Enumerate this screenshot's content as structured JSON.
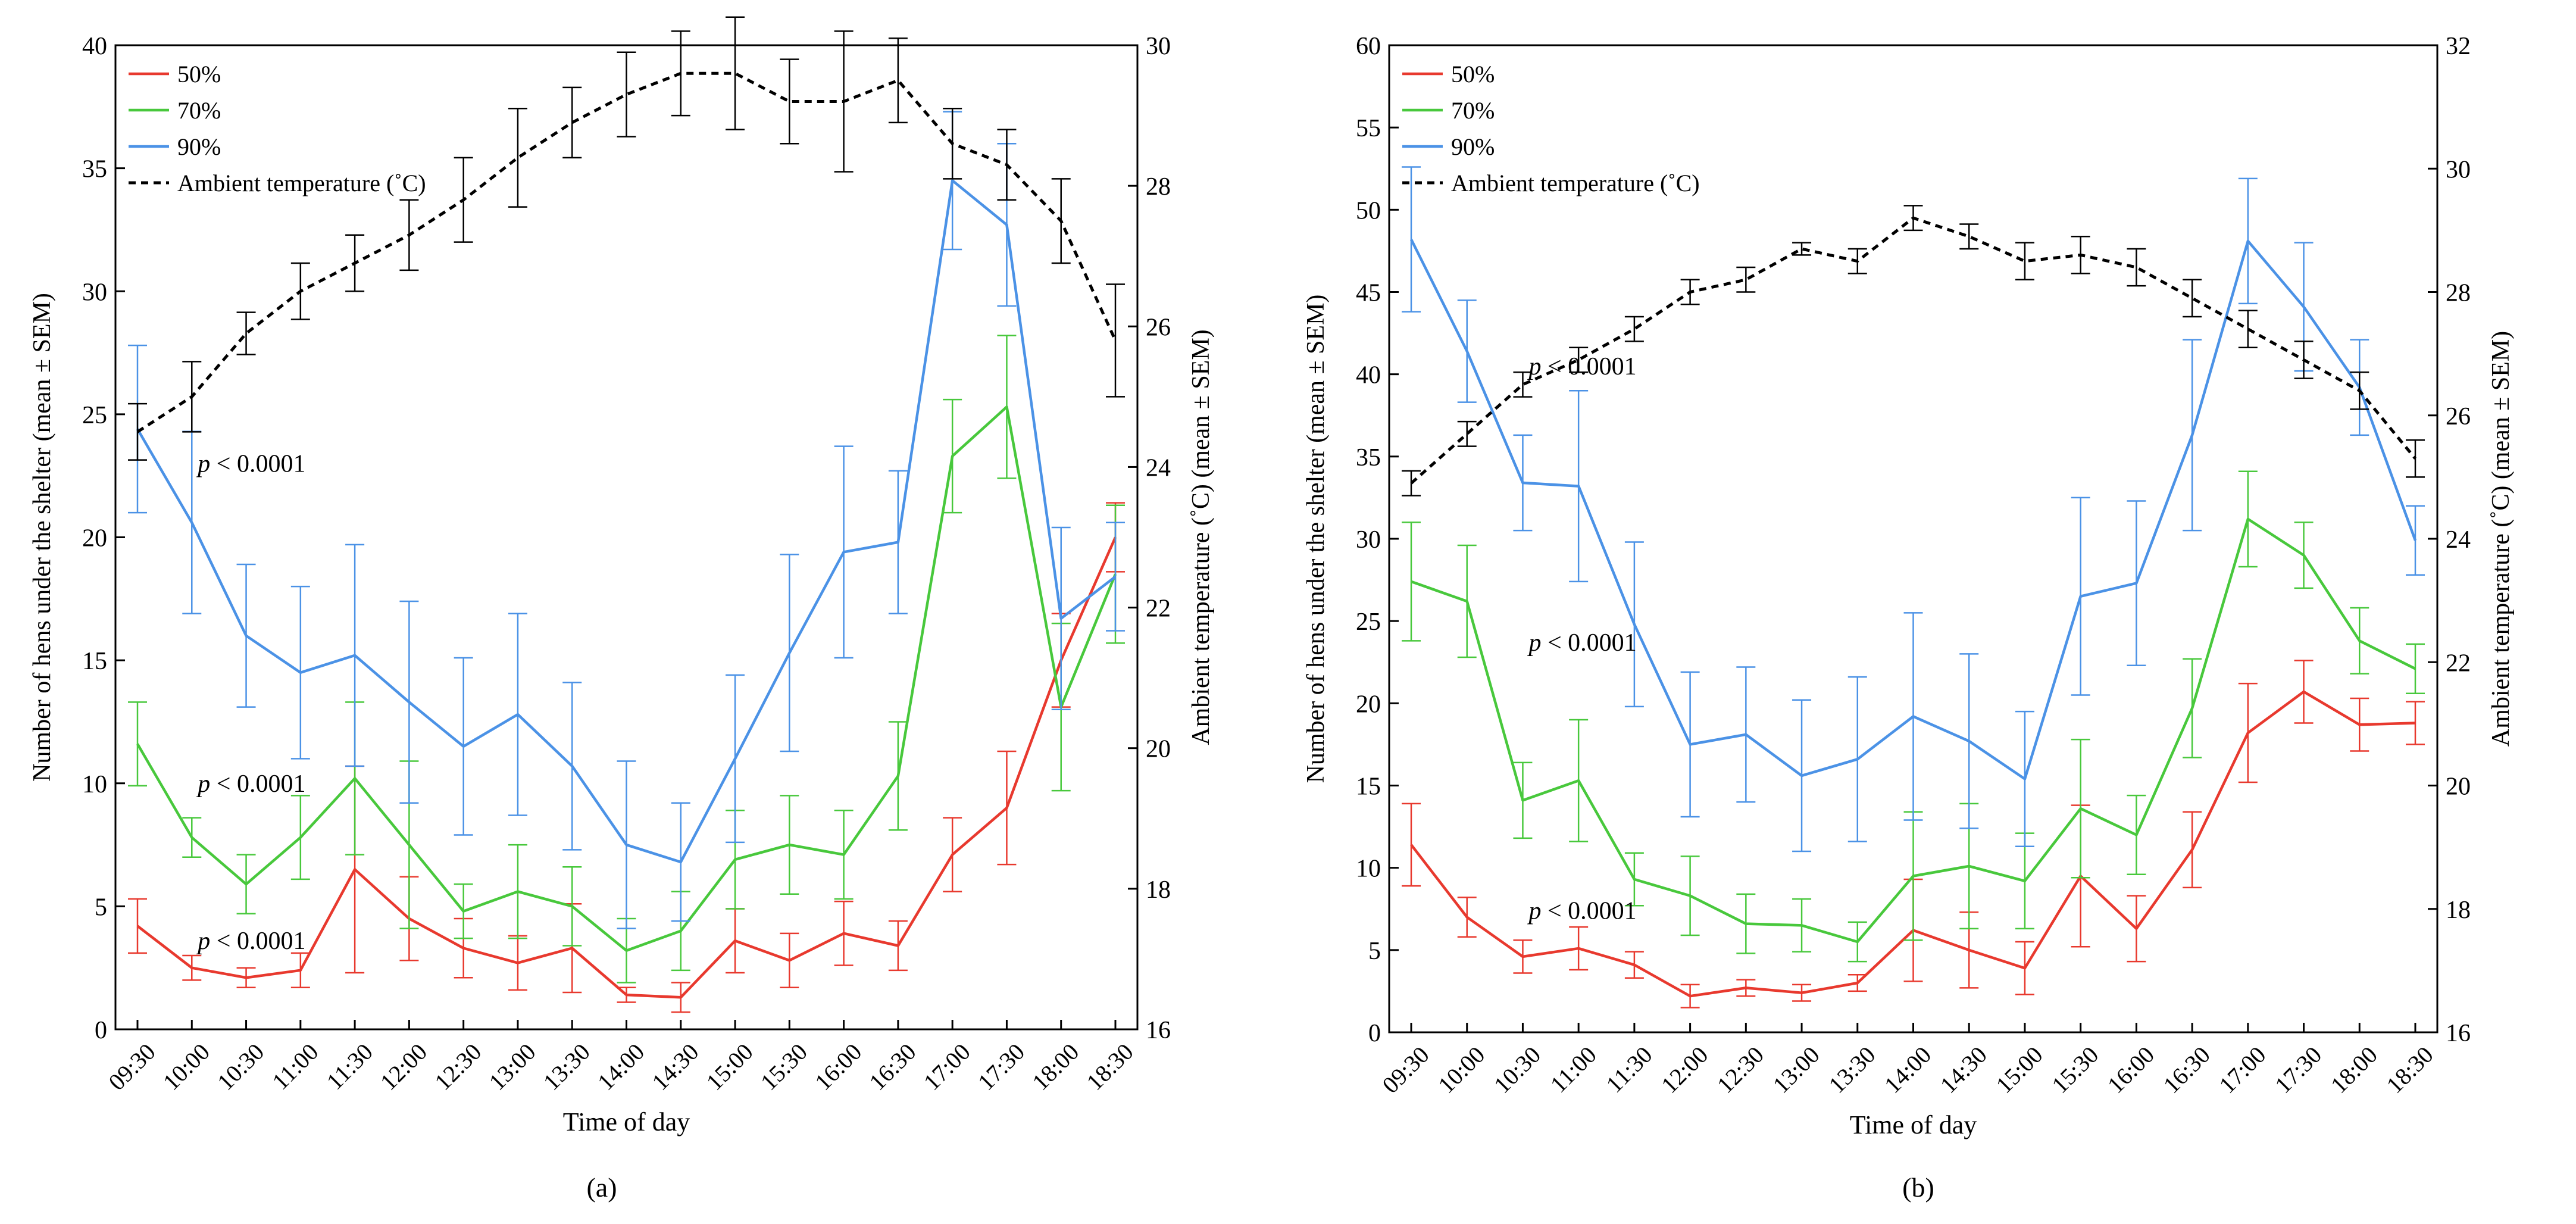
{
  "chart_data": [
    {
      "type": "line",
      "panel_label": "(a)",
      "xlabel": "Time of day",
      "ylabel": "Number of hens under the shelter (mean ± SEM)",
      "y2label": "Ambient temperature (˚C) (mean ± SEM)",
      "ylim": [
        0,
        40
      ],
      "yticks": [
        0,
        5,
        10,
        15,
        20,
        25,
        30,
        35,
        40
      ],
      "y2lim": [
        16,
        30
      ],
      "y2ticks": [
        16,
        18,
        20,
        22,
        24,
        26,
        28,
        30
      ],
      "categories": [
        "09:30",
        "10:00",
        "10:30",
        "11:00",
        "11:30",
        "12:00",
        "12:30",
        "13:00",
        "13:30",
        "14:00",
        "14:30",
        "15:00",
        "15:30",
        "16:00",
        "16:30",
        "17:00",
        "17:30",
        "18:00",
        "18:30"
      ],
      "legend": [
        "50%",
        "70%",
        "90%",
        "Ambient temperature (˚C)"
      ],
      "series": [
        {
          "name": "50%",
          "color": "#e8392e",
          "axis": "left",
          "values": [
            4.2,
            2.5,
            2.1,
            2.4,
            6.5,
            4.5,
            3.3,
            2.7,
            3.3,
            1.4,
            1.3,
            3.6,
            2.8,
            3.9,
            3.4,
            7.1,
            9.0,
            15.0,
            20.0
          ],
          "errors": [
            1.1,
            0.5,
            0.4,
            0.7,
            4.2,
            1.7,
            1.2,
            1.1,
            1.8,
            0.3,
            0.6,
            1.3,
            1.1,
            1.3,
            1.0,
            1.5,
            2.3,
            1.9,
            1.4
          ]
        },
        {
          "name": "70%",
          "color": "#48c83c",
          "axis": "left",
          "values": [
            11.6,
            7.8,
            5.9,
            7.8,
            10.2,
            7.5,
            4.8,
            5.6,
            5.0,
            3.2,
            4.0,
            6.9,
            7.5,
            7.1,
            10.3,
            23.3,
            25.3,
            13.1,
            18.5
          ],
          "errors": [
            1.7,
            0.8,
            1.2,
            1.7,
            3.1,
            3.4,
            1.1,
            1.9,
            1.6,
            1.3,
            1.6,
            2.0,
            2.0,
            1.8,
            2.2,
            2.3,
            2.9,
            3.4,
            2.8
          ]
        },
        {
          "name": "90%",
          "color": "#4b92e6",
          "axis": "left",
          "values": [
            24.4,
            20.6,
            16.0,
            14.5,
            15.2,
            13.3,
            11.5,
            12.8,
            10.7,
            7.5,
            6.8,
            11.0,
            15.3,
            19.4,
            19.8,
            34.5,
            32.7,
            16.7,
            18.4
          ],
          "errors": [
            3.4,
            3.7,
            2.9,
            3.5,
            4.5,
            4.1,
            3.6,
            4.1,
            3.4,
            3.4,
            2.4,
            3.4,
            4.0,
            4.3,
            2.9,
            2.8,
            3.3,
            3.7,
            2.2
          ]
        },
        {
          "name": "Ambient temperature (˚C)",
          "color": "#000000",
          "axis": "right",
          "dashed": true,
          "values": [
            24.5,
            25.0,
            25.9,
            26.5,
            26.9,
            27.3,
            27.8,
            28.4,
            28.9,
            29.3,
            29.6,
            29.6,
            29.2,
            29.2,
            29.5,
            28.6,
            28.3,
            27.5,
            25.8
          ],
          "errors": [
            0.4,
            0.5,
            0.3,
            0.4,
            0.4,
            0.5,
            0.6,
            0.7,
            0.5,
            0.6,
            0.6,
            0.8,
            0.6,
            1.0,
            0.6,
            0.5,
            0.5,
            0.6,
            0.8
          ]
        }
      ],
      "annotations": [
        {
          "text": "p",
          "rest": " < 0.0001",
          "at_category": "10:00",
          "at_value": 23.0
        },
        {
          "text": "p",
          "rest": " < 0.0001",
          "at_category": "10:00",
          "at_value": 10.0
        },
        {
          "text": "p",
          "rest": " < 0.0001",
          "at_category": "10:00",
          "at_value": 3.6
        }
      ]
    },
    {
      "type": "line",
      "panel_label": "(b)",
      "xlabel": "Time of day",
      "ylabel": "Number of hens under the shelter (mean ± SEM)",
      "y2label": "Ambient temperature (˚C) (mean ± SEM)",
      "ylim": [
        0,
        60
      ],
      "yticks": [
        0,
        5,
        10,
        15,
        20,
        25,
        30,
        35,
        40,
        45,
        50,
        55,
        60
      ],
      "y2lim": [
        16,
        32
      ],
      "y2ticks": [
        16,
        18,
        20,
        22,
        24,
        26,
        28,
        30,
        32
      ],
      "categories": [
        "09:30",
        "10:00",
        "10:30",
        "11:00",
        "11:30",
        "12:00",
        "12:30",
        "13:00",
        "13:30",
        "14:00",
        "14:30",
        "15:00",
        "15:30",
        "16:00",
        "16:30",
        "17:00",
        "17:30",
        "18:00",
        "18:30"
      ],
      "legend": [
        "50%",
        "70%",
        "90%",
        "Ambient temperature (˚C)"
      ],
      "series": [
        {
          "name": "50%",
          "color": "#e8392e",
          "axis": "left",
          "values": [
            11.4,
            7.0,
            4.6,
            5.1,
            4.1,
            2.2,
            2.7,
            2.4,
            3.0,
            6.2,
            5.0,
            3.9,
            9.5,
            6.3,
            11.1,
            18.2,
            20.7,
            18.7,
            18.8
          ],
          "errors": [
            2.5,
            1.2,
            1.0,
            1.3,
            0.8,
            0.7,
            0.5,
            0.5,
            0.5,
            3.1,
            2.3,
            1.6,
            4.3,
            2.0,
            2.3,
            3.0,
            1.9,
            1.6,
            1.3
          ]
        },
        {
          "name": "70%",
          "color": "#48c83c",
          "axis": "left",
          "values": [
            27.4,
            26.2,
            14.1,
            15.3,
            9.3,
            8.3,
            6.6,
            6.5,
            5.5,
            9.5,
            10.1,
            9.2,
            13.6,
            12.0,
            19.7,
            31.2,
            29.0,
            23.8,
            22.1
          ],
          "errors": [
            3.6,
            3.4,
            2.3,
            3.7,
            1.6,
            2.4,
            1.8,
            1.6,
            1.2,
            3.9,
            3.8,
            2.9,
            4.2,
            2.4,
            3.0,
            2.9,
            2.0,
            2.0,
            1.5
          ]
        },
        {
          "name": "90%",
          "color": "#4b92e6",
          "axis": "left",
          "values": [
            48.2,
            41.4,
            33.4,
            33.2,
            24.8,
            17.5,
            18.1,
            15.6,
            16.6,
            19.2,
            17.7,
            15.4,
            26.5,
            27.3,
            36.3,
            48.1,
            44.1,
            39.2,
            29.9
          ],
          "errors": [
            4.4,
            3.1,
            2.9,
            5.8,
            5.0,
            4.4,
            4.1,
            4.6,
            5.0,
            6.3,
            5.3,
            4.1,
            6.0,
            5.0,
            5.8,
            3.8,
            3.9,
            2.9,
            2.1
          ]
        },
        {
          "name": "Ambient temperature (˚C)",
          "color": "#000000",
          "axis": "right",
          "dashed": true,
          "values": [
            24.9,
            25.7,
            26.5,
            26.9,
            27.4,
            28.0,
            28.2,
            28.7,
            28.5,
            29.2,
            28.9,
            28.5,
            28.6,
            28.4,
            27.9,
            27.4,
            26.9,
            26.4,
            25.3
          ],
          "errors": [
            0.2,
            0.2,
            0.2,
            0.2,
            0.2,
            0.2,
            0.2,
            0.1,
            0.2,
            0.2,
            0.2,
            0.3,
            0.3,
            0.3,
            0.3,
            0.3,
            0.3,
            0.3,
            0.3
          ]
        }
      ],
      "annotations": [
        {
          "text": "p",
          "rest": " < 0.0001",
          "at_category": "10:30",
          "at_value": 40.5
        },
        {
          "text": "p",
          "rest": " < 0.0001",
          "at_category": "10:30",
          "at_value": 23.7
        },
        {
          "text": "p",
          "rest": " < 0.0001",
          "at_category": "10:30",
          "at_value": 7.4
        }
      ]
    }
  ]
}
